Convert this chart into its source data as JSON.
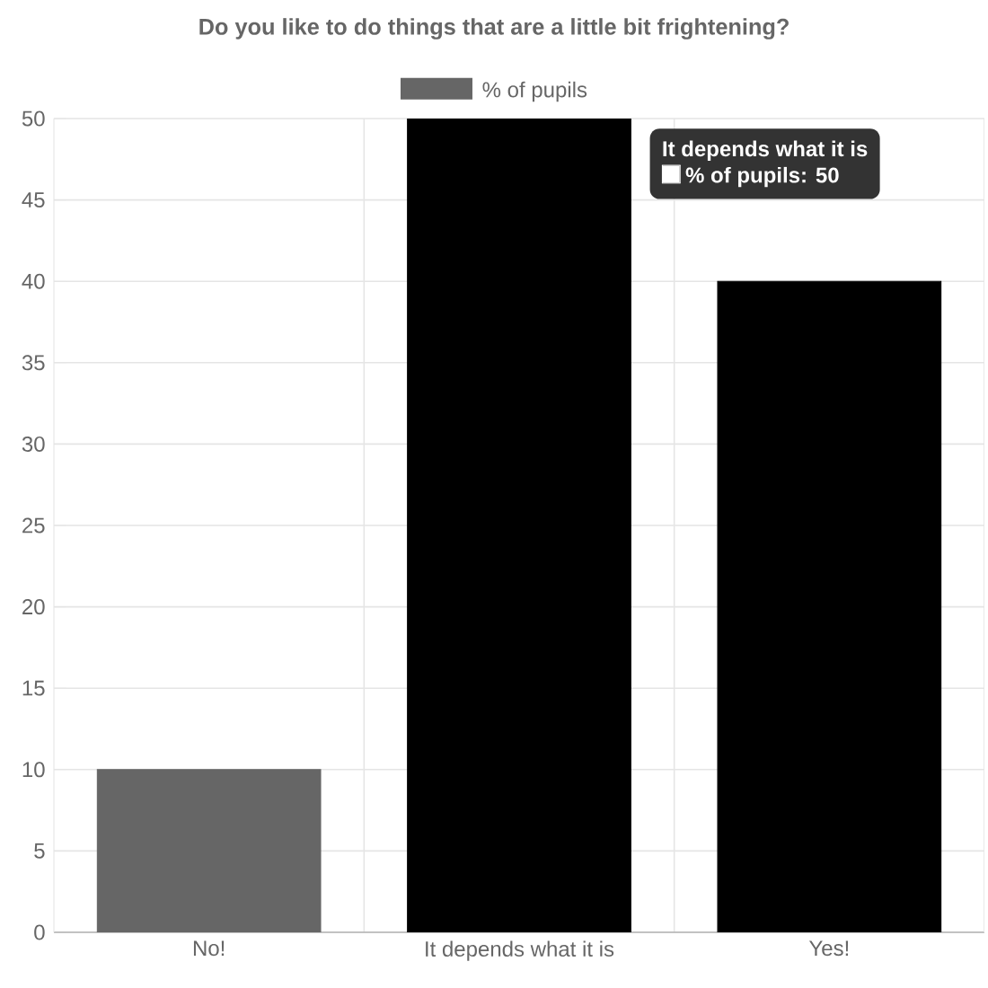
{
  "chart_data": {
    "type": "bar",
    "title": "Do you like to do things that are a little bit frightening?",
    "categories": [
      "No!",
      "It depends what it is",
      "Yes!"
    ],
    "series": [
      {
        "name": "% of pupils",
        "color": "#666666",
        "colors": [
          "#666666",
          "#000000",
          "#000000"
        ],
        "values": [
          10,
          50,
          40
        ]
      }
    ],
    "ylim": [
      0,
      50
    ],
    "yticks": [
      0,
      5,
      10,
      15,
      20,
      25,
      30,
      35,
      40,
      45,
      50
    ],
    "grid": true,
    "legend": "top",
    "annotations": [
      "It depends what it is",
      "% of pupils: 50"
    ]
  }
}
